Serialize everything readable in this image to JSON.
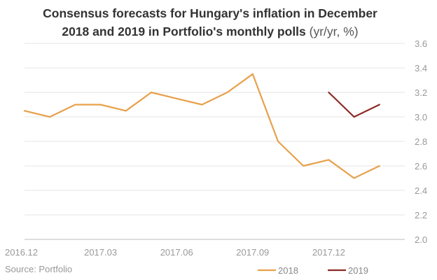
{
  "chart_data": {
    "type": "line",
    "title_bold_line1": "Consensus forecasts for Hungary's inflation in December",
    "title_bold_line2": "2018 and 2019 in Portfolio's monthly polls",
    "title_light": " (yr/yr, %)",
    "x_tick_labels": [
      "2016.12",
      "2017.03",
      "2017.06",
      "2017.09",
      "2017.12"
    ],
    "y_tick_labels": [
      "2.0",
      "2.2",
      "2.4",
      "2.6",
      "2.8",
      "3.0",
      "3.2",
      "3.4",
      "3.6"
    ],
    "ylim": [
      2.0,
      3.6
    ],
    "x_count": 16,
    "series": [
      {
        "name": "2018",
        "color": "#E8A04B",
        "start_index": 0,
        "values": [
          3.05,
          3.0,
          3.1,
          3.1,
          3.05,
          3.2,
          3.15,
          3.1,
          3.2,
          3.35,
          2.8,
          2.6,
          2.65,
          2.5,
          2.6
        ]
      },
      {
        "name": "2019",
        "color": "#8B2A24",
        "start_index": 12,
        "values": [
          3.2,
          3.0,
          3.1
        ]
      }
    ],
    "source": "Source: Portfolio"
  }
}
